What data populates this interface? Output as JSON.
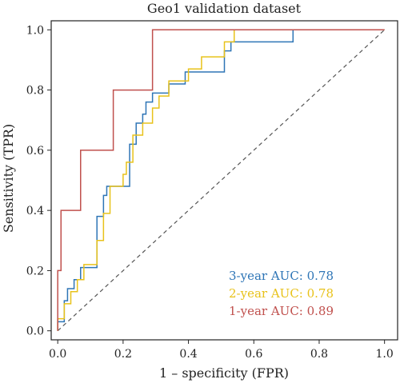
{
  "chart_data": {
    "type": "line",
    "title": "Geo1 validation dataset",
    "xlabel": "1 – specificity (FPR)",
    "ylabel": "Sensitivity (TPR)",
    "xlim": [
      -0.02,
      1.04
    ],
    "ylim": [
      -0.03,
      1.03
    ],
    "x_ticks": [
      "0.0",
      "0.2",
      "0.4",
      "0.6",
      "0.8",
      "1.0"
    ],
    "y_ticks": [
      "0.0",
      "0.2",
      "0.4",
      "0.6",
      "0.8",
      "1.0"
    ],
    "grid": false,
    "legend_position": "bottom-right",
    "series": [
      {
        "name": "3-year AUC: 0.78",
        "color": "#2e75b6",
        "points": [
          [
            0,
            0
          ],
          [
            0,
            0.03
          ],
          [
            0.02,
            0.03
          ],
          [
            0.02,
            0.1
          ],
          [
            0.03,
            0.1
          ],
          [
            0.03,
            0.14
          ],
          [
            0.05,
            0.14
          ],
          [
            0.05,
            0.17
          ],
          [
            0.07,
            0.17
          ],
          [
            0.07,
            0.21
          ],
          [
            0.12,
            0.21
          ],
          [
            0.12,
            0.38
          ],
          [
            0.14,
            0.38
          ],
          [
            0.14,
            0.45
          ],
          [
            0.15,
            0.45
          ],
          [
            0.15,
            0.48
          ],
          [
            0.22,
            0.48
          ],
          [
            0.22,
            0.62
          ],
          [
            0.24,
            0.62
          ],
          [
            0.24,
            0.69
          ],
          [
            0.26,
            0.69
          ],
          [
            0.26,
            0.72
          ],
          [
            0.27,
            0.72
          ],
          [
            0.27,
            0.76
          ],
          [
            0.29,
            0.76
          ],
          [
            0.29,
            0.79
          ],
          [
            0.34,
            0.79
          ],
          [
            0.34,
            0.82
          ],
          [
            0.39,
            0.82
          ],
          [
            0.39,
            0.86
          ],
          [
            0.51,
            0.86
          ],
          [
            0.51,
            0.93
          ],
          [
            0.53,
            0.93
          ],
          [
            0.53,
            0.96
          ],
          [
            0.72,
            0.96
          ],
          [
            0.72,
            1.0
          ],
          [
            1.0,
            1.0
          ]
        ]
      },
      {
        "name": "2-year AUC: 0.78",
        "color": "#e8c21a",
        "points": [
          [
            0,
            0
          ],
          [
            0,
            0.04
          ],
          [
            0.02,
            0.04
          ],
          [
            0.02,
            0.09
          ],
          [
            0.04,
            0.09
          ],
          [
            0.04,
            0.13
          ],
          [
            0.06,
            0.13
          ],
          [
            0.06,
            0.17
          ],
          [
            0.08,
            0.17
          ],
          [
            0.08,
            0.22
          ],
          [
            0.12,
            0.22
          ],
          [
            0.12,
            0.3
          ],
          [
            0.14,
            0.3
          ],
          [
            0.14,
            0.39
          ],
          [
            0.16,
            0.39
          ],
          [
            0.16,
            0.48
          ],
          [
            0.2,
            0.48
          ],
          [
            0.2,
            0.52
          ],
          [
            0.21,
            0.52
          ],
          [
            0.21,
            0.56
          ],
          [
            0.23,
            0.56
          ],
          [
            0.23,
            0.65
          ],
          [
            0.26,
            0.65
          ],
          [
            0.26,
            0.69
          ],
          [
            0.29,
            0.69
          ],
          [
            0.29,
            0.74
          ],
          [
            0.31,
            0.74
          ],
          [
            0.31,
            0.78
          ],
          [
            0.34,
            0.78
          ],
          [
            0.34,
            0.83
          ],
          [
            0.4,
            0.83
          ],
          [
            0.4,
            0.87
          ],
          [
            0.44,
            0.87
          ],
          [
            0.44,
            0.91
          ],
          [
            0.51,
            0.91
          ],
          [
            0.51,
            0.96
          ],
          [
            0.54,
            0.96
          ],
          [
            0.54,
            1.0
          ],
          [
            1.0,
            1.0
          ]
        ]
      },
      {
        "name": "1-year AUC: 0.89",
        "color": "#c0504d",
        "points": [
          [
            0,
            0
          ],
          [
            0,
            0.2
          ],
          [
            0.01,
            0.2
          ],
          [
            0.01,
            0.4
          ],
          [
            0.07,
            0.4
          ],
          [
            0.07,
            0.6
          ],
          [
            0.17,
            0.6
          ],
          [
            0.17,
            0.8
          ],
          [
            0.29,
            0.8
          ],
          [
            0.29,
            1.0
          ],
          [
            1.0,
            1.0
          ]
        ]
      }
    ],
    "reference_line": {
      "style": "dashed",
      "color": "#555555",
      "points": [
        [
          0,
          0
        ],
        [
          1,
          1
        ]
      ]
    }
  }
}
